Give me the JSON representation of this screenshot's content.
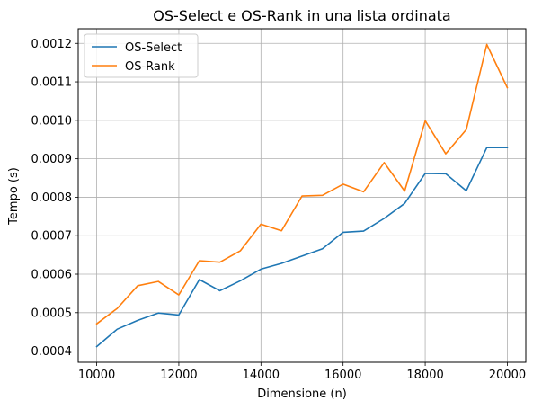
{
  "chart_data": {
    "type": "line",
    "title": "OS-Select e OS-Rank in una lista ordinata",
    "xlabel": "Dimensione (n)",
    "ylabel": "Tempo (s)",
    "xlim": [
      9550,
      20450
    ],
    "ylim": [
      0.000371,
      0.001238
    ],
    "grid": true,
    "legend_position": "top-left",
    "x_ticks": [
      10000,
      12000,
      14000,
      16000,
      18000,
      20000
    ],
    "x_tick_labels": [
      "10000",
      "12000",
      "14000",
      "16000",
      "18000",
      "20000"
    ],
    "y_ticks": [
      0.0004,
      0.0005,
      0.0006,
      0.0007,
      0.0008,
      0.0009,
      0.001,
      0.0011,
      0.0012
    ],
    "y_tick_labels": [
      "0.0004",
      "0.0005",
      "0.0006",
      "0.0007",
      "0.0008",
      "0.0009",
      "0.0010",
      "0.0011",
      "0.0012"
    ],
    "x": [
      10000,
      10500,
      11000,
      11500,
      12000,
      12500,
      13000,
      13500,
      14000,
      14500,
      15000,
      15500,
      16000,
      16500,
      17000,
      17500,
      18000,
      18500,
      19000,
      19500,
      20000
    ],
    "series": [
      {
        "name": "OS-Select",
        "color": "#1f77b4",
        "values": [
          0.000412,
          0.000457,
          0.00048,
          0.000499,
          0.000494,
          0.000586,
          0.000557,
          0.000583,
          0.000613,
          0.000628,
          0.000647,
          0.000666,
          0.000709,
          0.000712,
          0.000745,
          0.000784,
          0.000862,
          0.000861,
          0.000817,
          0.000929,
          0.000929
        ]
      },
      {
        "name": "OS-Rank",
        "color": "#ff7f0e",
        "values": [
          0.000471,
          0.000511,
          0.00057,
          0.000581,
          0.000546,
          0.000635,
          0.000631,
          0.000661,
          0.00073,
          0.000713,
          0.000803,
          0.000805,
          0.000834,
          0.000814,
          0.00089,
          0.000816,
          0.000999,
          0.000913,
          0.000976,
          0.001197,
          0.001085
        ]
      }
    ]
  }
}
